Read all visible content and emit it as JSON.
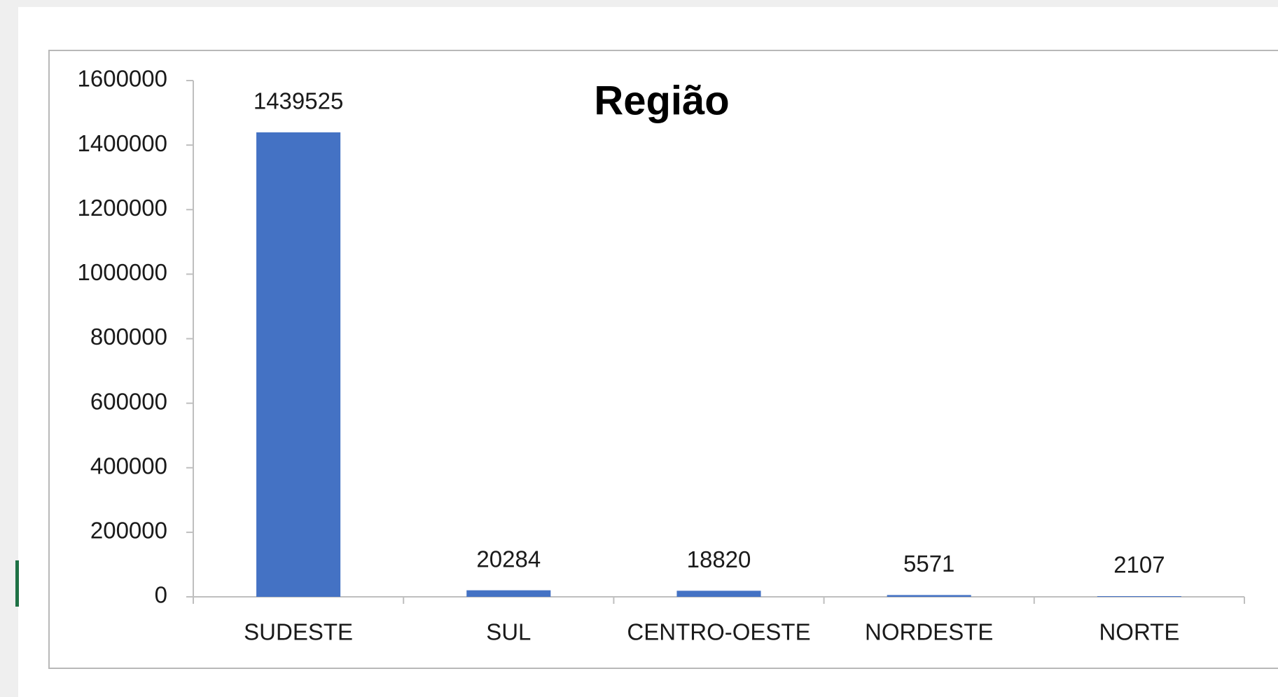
{
  "chart_data": {
    "type": "bar",
    "title": "Região",
    "categories": [
      "SUDESTE",
      "SUL",
      "CENTRO-OESTE",
      "NORDESTE",
      "NORTE"
    ],
    "values": [
      1439525,
      20284,
      18820,
      5571,
      2107
    ],
    "color": "#4472c4",
    "ylim": [
      0,
      1600000
    ],
    "yticks": [
      0,
      200000,
      400000,
      600000,
      800000,
      1000000,
      1200000,
      1400000,
      1600000
    ],
    "grid": false
  }
}
